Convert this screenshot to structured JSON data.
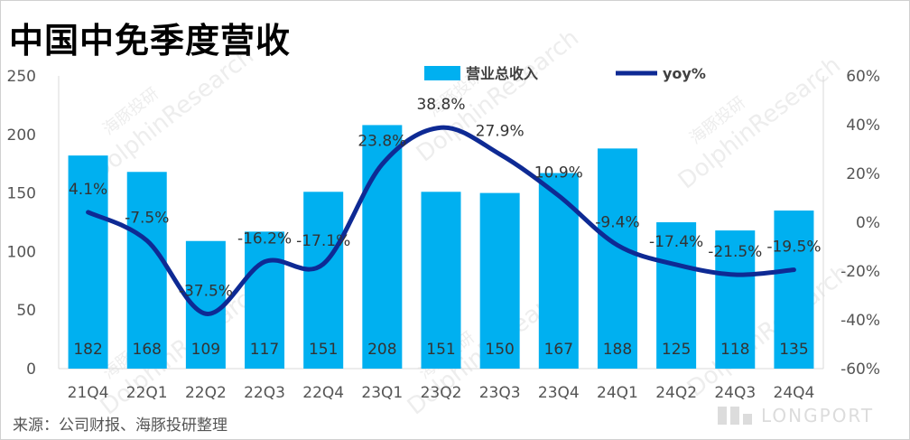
{
  "title": "中国中免季度营收",
  "source": "来源：公司财报、海豚投研整理",
  "watermarks": {
    "dolphin_cn": "海豚投研",
    "dolphin_en": "DolphinResearch",
    "longport": "LONGPORT"
  },
  "colors": {
    "bar": "#00B0F0",
    "line": "#0E2A94",
    "axis_text": "#555555",
    "grid": "#dddddd"
  },
  "chart_data": {
    "type": "bar",
    "title": "中国中免季度营收",
    "categories": [
      "21Q4",
      "22Q1",
      "22Q2",
      "22Q3",
      "22Q4",
      "23Q1",
      "23Q2",
      "23Q3",
      "23Q4",
      "24Q1",
      "24Q2",
      "24Q3",
      "24Q4"
    ],
    "series": [
      {
        "name": "营业总收入",
        "type": "bar",
        "axis": "left",
        "values": [
          182,
          168,
          109,
          117,
          151,
          208,
          151,
          150,
          167,
          188,
          125,
          118,
          135
        ],
        "labels": [
          "182",
          "168",
          "109",
          "117",
          "151",
          "208",
          "151",
          "150",
          "167",
          "188",
          "125",
          "118",
          "135"
        ]
      },
      {
        "name": "yoy%",
        "type": "line",
        "axis": "right",
        "values": [
          4.1,
          -7.5,
          -37.5,
          -16.2,
          -17.1,
          23.8,
          38.8,
          27.9,
          10.9,
          -9.4,
          -17.4,
          -21.5,
          -19.5
        ],
        "labels": [
          "4.1%",
          "-7.5%",
          "-37.5%",
          "-16.2%",
          "-17.1%",
          "23.8%",
          "38.8%",
          "27.9%",
          "10.9%",
          "-9.4%",
          "-17.4%",
          "-21.5%",
          "-19.5%"
        ]
      }
    ],
    "y_left": {
      "min": 0,
      "max": 250,
      "ticks": [
        0,
        50,
        100,
        150,
        200,
        250
      ],
      "tick_labels": [
        "0",
        "50",
        "100",
        "150",
        "200",
        "250"
      ]
    },
    "y_right": {
      "min": -60,
      "max": 60,
      "ticks": [
        -60,
        -40,
        -20,
        0,
        20,
        40,
        60
      ],
      "tick_labels": [
        "-60%",
        "-40%",
        "-20%",
        "0%",
        "20%",
        "40%",
        "60%"
      ]
    },
    "legend": {
      "position": "top-center",
      "entries": [
        "营业总收入",
        "yoy%"
      ]
    },
    "grid": false
  }
}
